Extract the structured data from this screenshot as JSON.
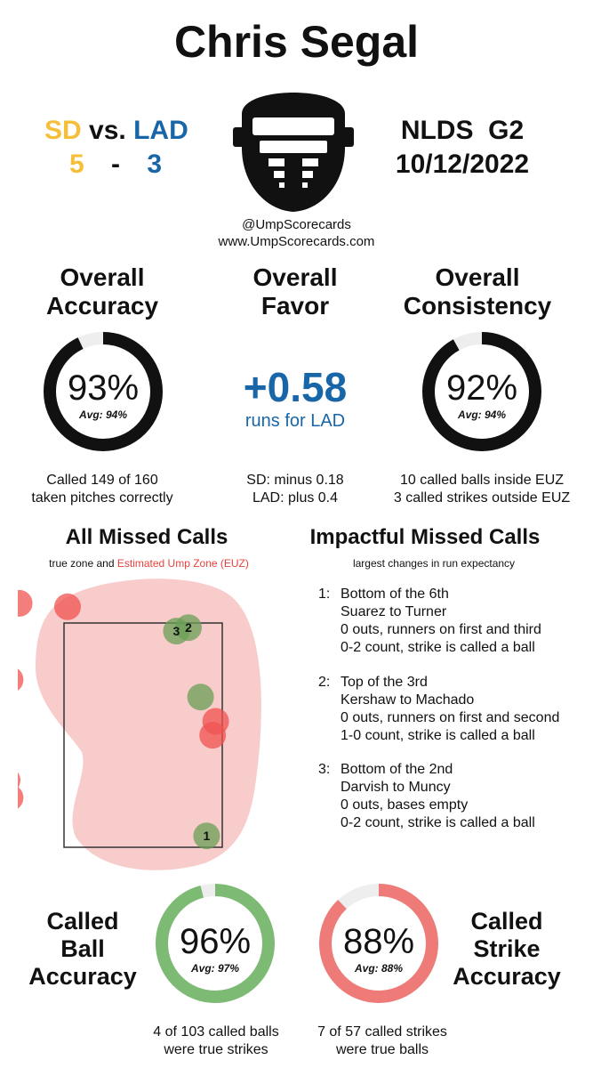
{
  "title": "Chris Segal",
  "matchup": {
    "away_team": "SD",
    "vs": "vs.",
    "home_team": "LAD",
    "away_score": "5",
    "dash": "-",
    "home_score": "3"
  },
  "game": {
    "series": "NLDS  G2",
    "date": "10/12/2022"
  },
  "source": {
    "handle": "@UmpScorecards",
    "site": "www.UmpScorecards.com"
  },
  "overall_accuracy": {
    "heading_1": "Overall",
    "heading_2": "Accuracy",
    "value": "93%",
    "fraction": 0.93,
    "avg": "Avg: 94%",
    "desc_1": "Called 149 of 160",
    "desc_2": "taken pitches correctly"
  },
  "overall_favor": {
    "heading_1": "Overall",
    "heading_2": "Favor",
    "value": "+0.58",
    "sub": "runs for LAD",
    "desc_1": "SD: minus 0.18",
    "desc_2": "LAD: plus 0.4"
  },
  "overall_consistency": {
    "heading_1": "Overall",
    "heading_2": "Consistency",
    "value": "92%",
    "fraction": 0.92,
    "avg": "Avg: 94%",
    "desc_1": "10 called balls inside EUZ",
    "desc_2": "3 called strikes outside EUZ"
  },
  "missed_calls": {
    "heading": "All Missed Calls",
    "legend_true": "true zone and ",
    "legend_euz": "Estimated Ump Zone (EUZ)",
    "euz_color": "#e8413d"
  },
  "impactful": {
    "heading": "Impactful Missed Calls",
    "sub": "largest changes in run expectancy",
    "items": [
      {
        "num": "1:",
        "line1": "Bottom of the 6th",
        "line2": "Suarez to Turner",
        "line3": "0 outs, runners on first and third",
        "line4": "0-2 count, strike is called a ball"
      },
      {
        "num": "2:",
        "line1": "Top of the 3rd",
        "line2": "Kershaw to Machado",
        "line3": "0 outs, runners on first and second",
        "line4": "1-0 count, strike is called a ball"
      },
      {
        "num": "3:",
        "line1": "Bottom of the 2nd",
        "line2": "Darvish to Muncy",
        "line3": "0 outs, bases empty",
        "line4": "0-2 count, strike is called a ball"
      }
    ]
  },
  "called_ball": {
    "heading_1": "Called",
    "heading_2": "Ball",
    "heading_3": "Accuracy",
    "value": "96%",
    "fraction": 0.96,
    "avg": "Avg: 97%",
    "desc_1": "4 of 103 called balls",
    "desc_2": "were true strikes",
    "color": "#7dbb74"
  },
  "called_strike": {
    "heading_1": "Called",
    "heading_2": "Strike",
    "heading_3": "Accuracy",
    "value": "88%",
    "fraction": 0.88,
    "avg": "Avg: 88%",
    "desc_1": "7 of 57 called strikes",
    "desc_2": "were true balls",
    "color": "#ee7b78"
  },
  "chart_data": {
    "type": "scatter",
    "series": [
      {
        "name": "missed balls",
        "color": "#ef5350",
        "points": [
          [
            -2.05,
            3.95
          ],
          [
            -1.25,
            3.9
          ],
          [
            -2.2,
            2.85
          ],
          [
            1.2,
            2.25
          ],
          [
            1.15,
            2.05
          ],
          [
            -2.25,
            1.4
          ],
          [
            -2.2,
            1.15
          ]
        ]
      },
      {
        "name": "missed strikes",
        "color": "#6a9f55",
        "points": [
          [
            0.55,
            3.55
          ],
          [
            0.75,
            3.6
          ],
          [
            0.95,
            2.6
          ],
          [
            1.05,
            0.6
          ]
        ]
      }
    ],
    "labels": [
      "3",
      "2",
      "1"
    ]
  }
}
